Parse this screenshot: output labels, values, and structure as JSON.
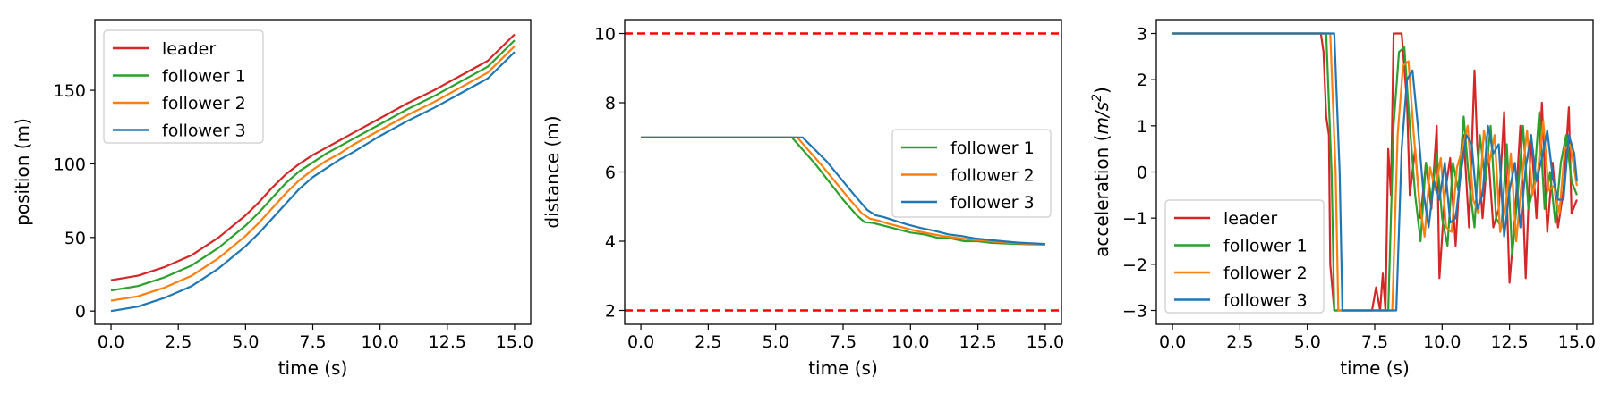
{
  "colors": {
    "leader": "#d62728",
    "follower_1": "#2ca02c",
    "follower_2": "#ff7f0e",
    "follower_3": "#1f77b4",
    "limit": "#ff0000"
  },
  "chart_data": [
    {
      "type": "line",
      "xlabel": "time (s)",
      "ylabel": "position (m)",
      "xlim": [
        -0.6,
        15.6
      ],
      "ylim": [
        -9,
        198
      ],
      "xticks": [
        0.0,
        2.5,
        5.0,
        7.5,
        10.0,
        12.5,
        15.0
      ],
      "xtick_labels": [
        "0.0",
        "2.5",
        "5.0",
        "7.5",
        "10.0",
        "12.5",
        "15.0"
      ],
      "yticks": [
        0,
        50,
        100,
        150
      ],
      "ytick_labels": [
        "0",
        "50",
        "100",
        "150"
      ],
      "legend": "top-left",
      "series": [
        {
          "name": "leader",
          "x": [
            0,
            1,
            2,
            3,
            4,
            5,
            5.5,
            6,
            6.5,
            7,
            7.5,
            8,
            8.5,
            9,
            10,
            11,
            12,
            13,
            14,
            15
          ],
          "values": [
            21,
            24,
            30,
            38,
            50,
            65,
            74,
            84,
            93,
            100,
            106,
            111,
            116,
            121,
            131,
            141,
            150,
            160,
            170,
            188
          ]
        },
        {
          "name": "follower 1",
          "x": [
            0,
            1,
            2,
            3,
            4,
            5,
            5.5,
            6,
            6.5,
            7,
            7.5,
            8,
            8.5,
            9,
            10,
            11,
            12,
            13,
            14,
            15
          ],
          "values": [
            14,
            17,
            23,
            31,
            43,
            58,
            67,
            77,
            87,
            95,
            101,
            107,
            112,
            117,
            127,
            137,
            146,
            156,
            166,
            184
          ]
        },
        {
          "name": "follower 2",
          "x": [
            0,
            1,
            2,
            3,
            4,
            5,
            5.5,
            6,
            6.5,
            7,
            7.5,
            8,
            8.5,
            9,
            10,
            11,
            12,
            13,
            14,
            15
          ],
          "values": [
            7,
            10,
            16,
            24,
            36,
            51,
            60,
            70,
            80,
            89,
            96,
            102,
            107,
            113,
            123,
            133,
            142,
            152,
            162,
            180
          ]
        },
        {
          "name": "follower 3",
          "x": [
            0,
            1,
            2,
            3,
            4,
            5,
            5.5,
            6,
            6.5,
            7,
            7.5,
            8,
            8.5,
            9,
            10,
            11,
            12,
            13,
            14,
            15
          ],
          "values": [
            0,
            3,
            9,
            17,
            29,
            44,
            53,
            63,
            73,
            83,
            91,
            97,
            103,
            108,
            119,
            129,
            138,
            148,
            158,
            176
          ]
        }
      ]
    },
    {
      "type": "line",
      "xlabel": "time (s)",
      "ylabel": "distance (m)",
      "xlim": [
        -0.6,
        15.6
      ],
      "ylim": [
        1.6,
        10.4
      ],
      "xticks": [
        0.0,
        2.5,
        5.0,
        7.5,
        10.0,
        12.5,
        15.0
      ],
      "xtick_labels": [
        "0.0",
        "2.5",
        "5.0",
        "7.5",
        "10.0",
        "12.5",
        "15.0"
      ],
      "yticks": [
        2,
        4,
        6,
        8,
        10
      ],
      "ytick_labels": [
        "2",
        "4",
        "6",
        "8",
        "10"
      ],
      "reference_lines": [
        2,
        10
      ],
      "legend": "center-right",
      "series": [
        {
          "name": "follower 1",
          "x": [
            0,
            5.6,
            6.5,
            7.5,
            8,
            8.3,
            8.6,
            9,
            9.5,
            10,
            10.5,
            11,
            11.5,
            12,
            12.5,
            13,
            14,
            15
          ],
          "values": [
            7.0,
            7.0,
            6.2,
            5.2,
            4.75,
            4.55,
            4.53,
            4.45,
            4.35,
            4.25,
            4.2,
            4.1,
            4.08,
            4.0,
            4.0,
            3.95,
            3.92,
            3.9
          ]
        },
        {
          "name": "follower 2",
          "x": [
            0,
            5.8,
            6.7,
            7.7,
            8.2,
            8.5,
            8.8,
            9.2,
            9.7,
            10.2,
            10.7,
            11.2,
            11.7,
            12.2,
            12.7,
            13.2,
            14,
            15
          ],
          "values": [
            7.0,
            7.0,
            6.2,
            5.25,
            4.8,
            4.65,
            4.6,
            4.5,
            4.4,
            4.3,
            4.22,
            4.15,
            4.1,
            4.05,
            4.02,
            3.98,
            3.94,
            3.9
          ]
        },
        {
          "name": "follower 3",
          "x": [
            0,
            6.0,
            6.9,
            7.9,
            8.4,
            8.7,
            9.0,
            9.4,
            9.9,
            10.4,
            10.9,
            11.4,
            11.9,
            12.4,
            12.9,
            13.4,
            14,
            15
          ],
          "values": [
            7.0,
            7.0,
            6.3,
            5.35,
            4.9,
            4.75,
            4.7,
            4.6,
            4.48,
            4.38,
            4.3,
            4.2,
            4.15,
            4.08,
            4.04,
            4.0,
            3.96,
            3.92
          ]
        }
      ]
    },
    {
      "type": "line",
      "xlabel": "time (s)",
      "ylabel_prefix": "acceleration (",
      "ylabel_unit": "m/s",
      "ylabel_exp": "2",
      "ylabel_suffix": ")",
      "xlim": [
        -0.6,
        15.6
      ],
      "ylim": [
        -3.3,
        3.3
      ],
      "xticks": [
        0.0,
        2.5,
        5.0,
        7.5,
        10.0,
        12.5,
        15.0
      ],
      "xtick_labels": [
        "0.0",
        "2.5",
        "5.0",
        "7.5",
        "10.0",
        "12.5",
        "15.0"
      ],
      "yticks": [
        -3,
        -2,
        -1,
        0,
        1,
        2,
        3
      ],
      "ytick_labels": [
        "−3",
        "−2",
        "−1",
        "0",
        "1",
        "2",
        "3"
      ],
      "legend": "bottom-left",
      "series": [
        {
          "name": "leader",
          "x": [
            0,
            5.5,
            5.6,
            5.7,
            5.8,
            5.85,
            6,
            7.4,
            7.55,
            7.7,
            7.8,
            7.9,
            8.0,
            8.1,
            8.2,
            8.3,
            8.5,
            8.7,
            8.8,
            9.0,
            9.2,
            9.4,
            9.6,
            9.8,
            9.9,
            10.1,
            10.3,
            10.5,
            10.6,
            10.8,
            11.0,
            11.2,
            11.3,
            11.5,
            11.7,
            11.9,
            12.1,
            12.3,
            12.5,
            12.7,
            12.9,
            13.1,
            13.3,
            13.5,
            13.7,
            13.9,
            14.1,
            14.3,
            14.5,
            14.7,
            14.8,
            15.0
          ],
          "values": [
            3,
            3,
            2.6,
            1.2,
            0.8,
            -2.0,
            -3,
            -3,
            -2.5,
            -3,
            -2.2,
            -3,
            0.5,
            -0.5,
            3.0,
            3.0,
            3.0,
            1.5,
            -0.5,
            0.5,
            -1.0,
            0.2,
            -0.8,
            1.0,
            -2.3,
            -0.5,
            0.3,
            -1.6,
            -0.6,
            0.8,
            -1.2,
            2.2,
            0.6,
            -1.0,
            0.5,
            -1.2,
            -0.8,
            1.3,
            -2.4,
            -1.0,
            1.0,
            -2.3,
            0.8,
            -1.0,
            1.5,
            -1.3,
            0.2,
            -1.2,
            -0.4,
            1.4,
            -0.9,
            -0.6
          ]
        },
        {
          "name": "follower 1",
          "x": [
            0,
            5.7,
            5.9,
            6.0,
            8.0,
            8.2,
            8.4,
            8.6,
            8.8,
            9.0,
            9.2,
            9.4,
            9.6,
            9.8,
            10.0,
            10.2,
            10.4,
            10.6,
            10.8,
            11.0,
            11.2,
            11.4,
            11.6,
            11.8,
            12.0,
            12.2,
            12.4,
            12.6,
            12.8,
            13.0,
            13.2,
            13.4,
            13.6,
            13.8,
            14.0,
            14.2,
            14.4,
            14.6,
            14.8,
            15.0
          ],
          "values": [
            3,
            3,
            0,
            -3,
            -3,
            1.0,
            2.6,
            2.7,
            1.0,
            -0.5,
            -1.5,
            0.2,
            -0.6,
            0.4,
            -1.0,
            -1.6,
            0.2,
            -0.4,
            1.2,
            -0.2,
            -1.2,
            0.8,
            -0.2,
            1.0,
            -1.0,
            -1.2,
            0.6,
            -1.8,
            -0.5,
            1.0,
            -0.8,
            -0.3,
            1.3,
            -0.8,
            0.0,
            -1.1,
            0.2,
            0.8,
            -0.2,
            -0.5
          ]
        },
        {
          "name": "follower 2",
          "x": [
            0,
            5.85,
            6.05,
            6.15,
            8.15,
            8.35,
            8.55,
            8.75,
            8.95,
            9.15,
            9.35,
            9.55,
            9.75,
            9.95,
            10.15,
            10.35,
            10.55,
            10.75,
            10.95,
            11.15,
            11.35,
            11.55,
            11.75,
            11.95,
            12.15,
            12.35,
            12.55,
            12.75,
            12.95,
            13.15,
            13.35,
            13.55,
            13.75,
            13.95,
            14.15,
            14.35,
            14.55,
            14.75,
            15.0
          ],
          "values": [
            3,
            3,
            0,
            -3,
            -3,
            0.8,
            2.3,
            2.4,
            0.8,
            -0.6,
            -1.4,
            0.1,
            -0.4,
            0.3,
            -1.2,
            -1.3,
            0.1,
            0.5,
            1.0,
            -0.6,
            -0.9,
            0.9,
            0.2,
            0.8,
            -1.3,
            -0.8,
            0.4,
            -1.5,
            -0.2,
            0.9,
            -0.5,
            0.0,
            1.1,
            -0.4,
            -0.3,
            -0.9,
            0.5,
            0.6,
            -0.3
          ]
        },
        {
          "name": "follower 3",
          "x": [
            0,
            6.0,
            6.2,
            6.3,
            8.3,
            8.5,
            8.7,
            8.9,
            9.1,
            9.3,
            9.5,
            9.7,
            9.9,
            10.1,
            10.3,
            10.5,
            10.7,
            10.9,
            11.1,
            11.3,
            11.5,
            11.7,
            11.9,
            12.1,
            12.3,
            12.5,
            12.7,
            12.9,
            13.1,
            13.3,
            13.5,
            13.7,
            13.9,
            14.1,
            14.3,
            14.5,
            14.7,
            14.9,
            15.0
          ],
          "values": [
            3,
            3,
            0,
            -3,
            -3,
            0.5,
            2.0,
            2.2,
            1.0,
            -0.4,
            -1.2,
            -0.2,
            -0.6,
            0.2,
            -1.1,
            -1.0,
            0.0,
            0.8,
            0.6,
            -0.8,
            -0.5,
            1.0,
            0.4,
            0.6,
            -1.4,
            -0.4,
            0.2,
            -1.2,
            0.1,
            0.8,
            -0.2,
            0.3,
            0.9,
            -0.1,
            -0.6,
            -0.6,
            0.8,
            0.4,
            -0.2
          ]
        }
      ]
    }
  ]
}
